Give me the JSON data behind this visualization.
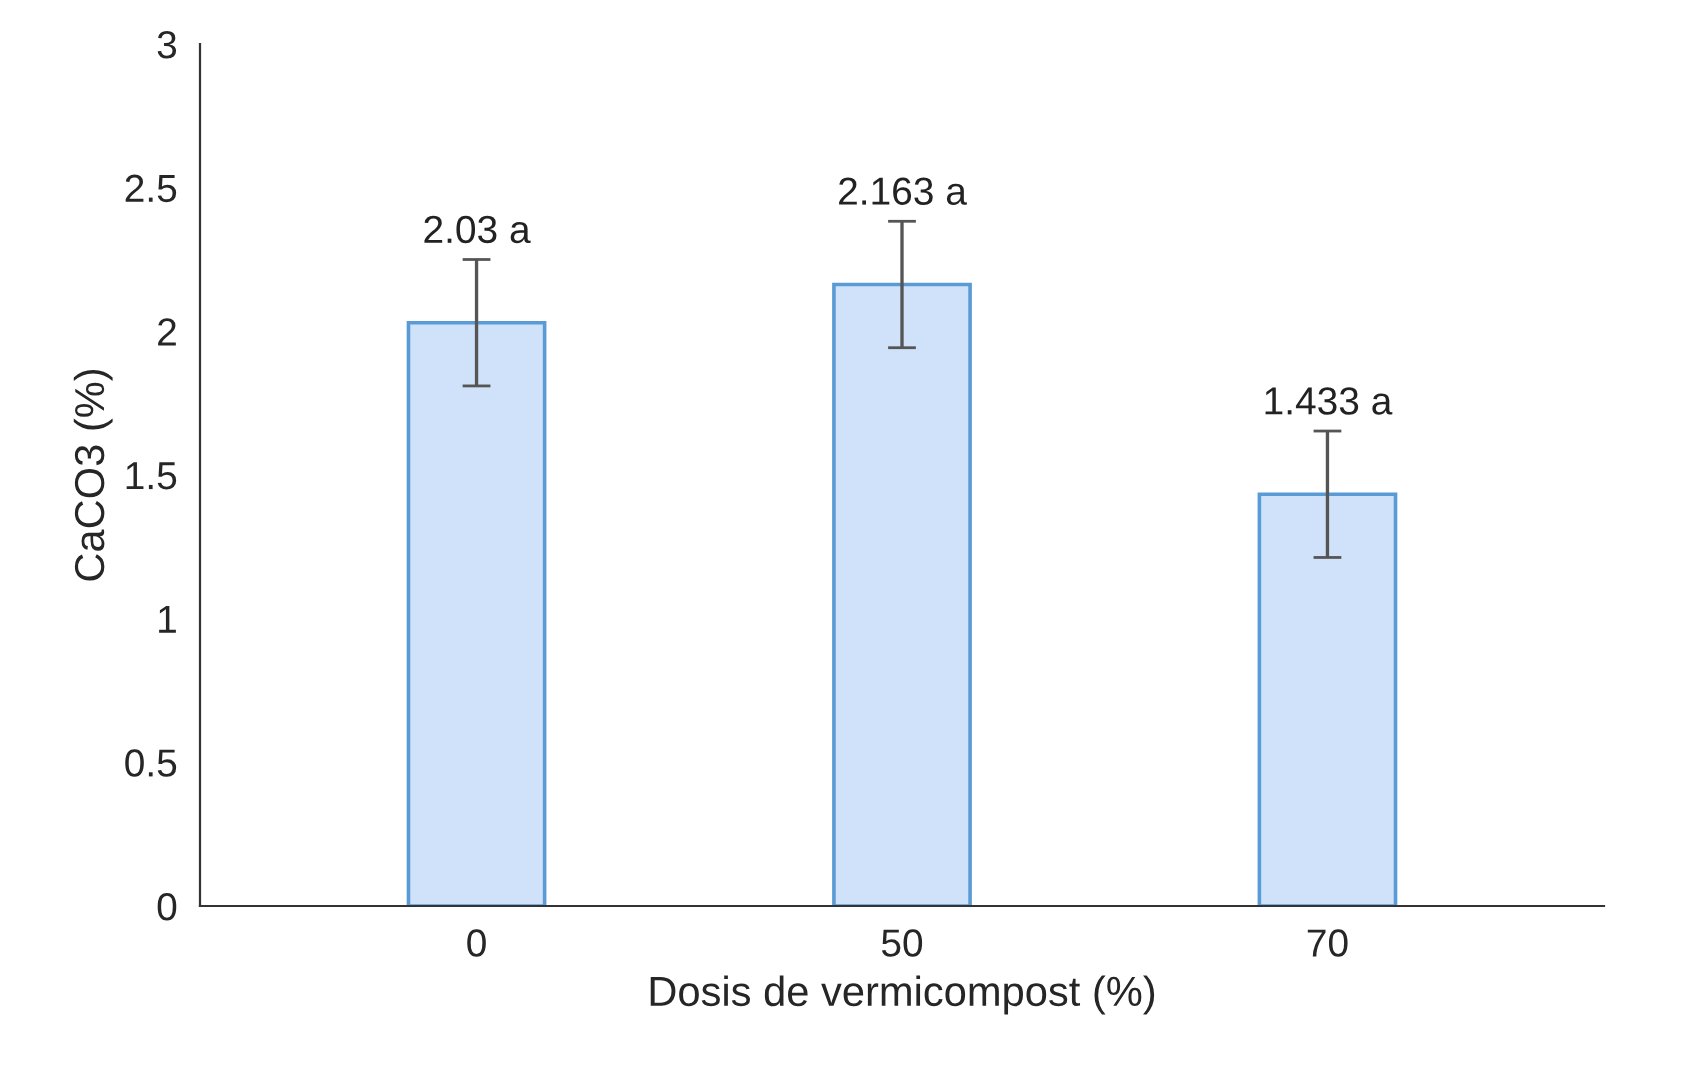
{
  "chart_data": {
    "type": "bar",
    "xlabel": "Dosis de vermicompost (%)",
    "ylabel": "CaCO3 (%)",
    "categories": [
      "0",
      "50",
      "70"
    ],
    "values": [
      2.03,
      2.163,
      1.433
    ],
    "errors": [
      0.22,
      0.22,
      0.22
    ],
    "value_labels": [
      "2.03 a",
      "2.163 a",
      "1.433 a"
    ],
    "color": "#cfe2fa",
    "ylim": [
      0,
      3
    ],
    "yticks": [
      0,
      0.5,
      1,
      1.5,
      2,
      2.5,
      3
    ],
    "grid": false,
    "legend": false
  }
}
